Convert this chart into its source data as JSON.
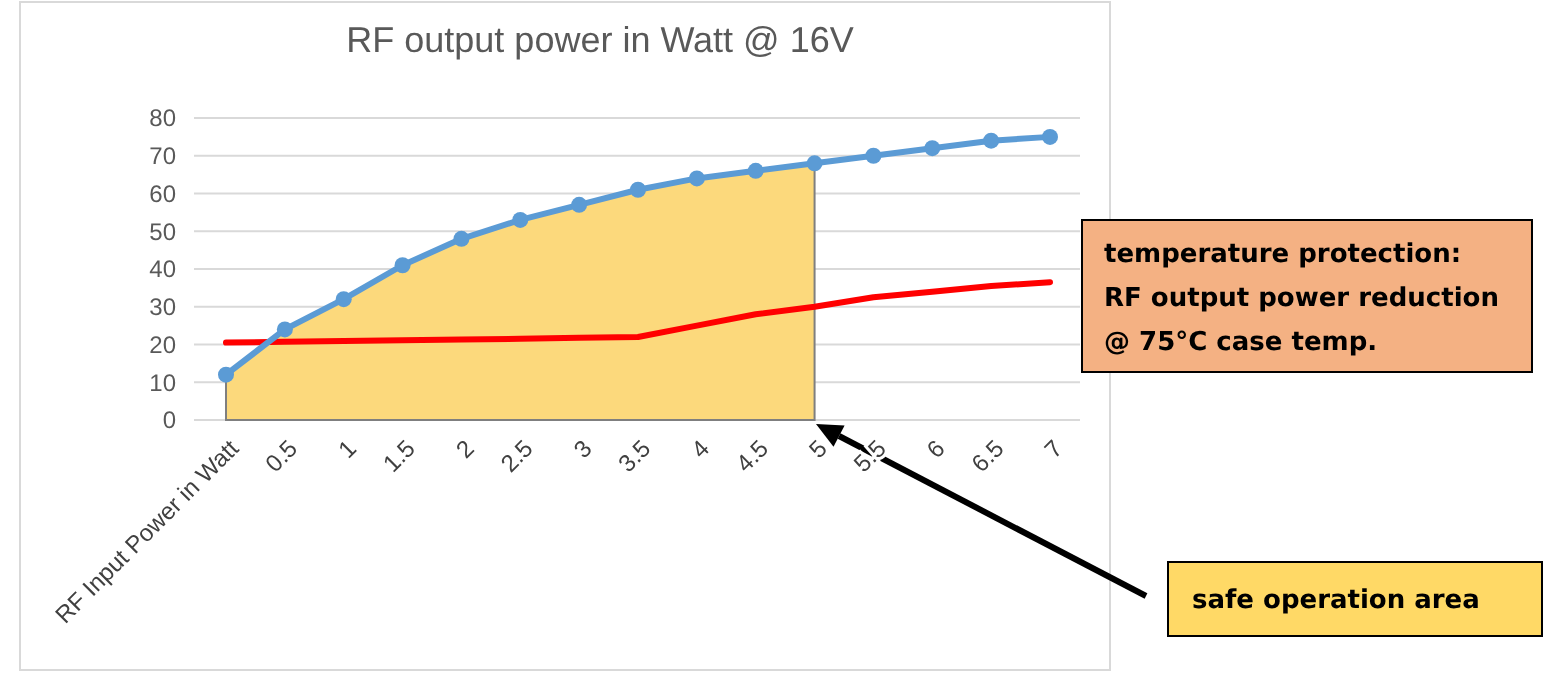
{
  "chart_data": {
    "type": "line",
    "title": "RF output power in Watt @ 16V",
    "categories": [
      "RF Input Power in Watt",
      "0.5",
      "1",
      "1.5",
      "2",
      "2.5",
      "3",
      "3.5",
      "4",
      "4.5",
      "5",
      "5.5",
      "6",
      "6.5",
      "7"
    ],
    "series": [
      {
        "type": "area",
        "color": "#fcd97c",
        "values": [
          12,
          24,
          32,
          41,
          48,
          53,
          57,
          61,
          64,
          66,
          68,
          null,
          null,
          null,
          null
        ]
      },
      {
        "color": "#ff0000",
        "marker": "none",
        "values": [
          20.5,
          20.7,
          20.9,
          21.1,
          21.3,
          21.5,
          21.8,
          22,
          25,
          28,
          30,
          32.5,
          34,
          35.5,
          36.5
        ]
      },
      {
        "color": "#5b9bd5",
        "marker": "circle",
        "values": [
          12,
          24,
          32,
          41,
          48,
          53,
          57,
          61,
          64,
          66,
          68,
          70,
          72,
          74,
          75
        ]
      }
    ],
    "ylim": [
      0,
      80
    ],
    "yticks": [
      0,
      10,
      20,
      30,
      40,
      50,
      60,
      70,
      80
    ],
    "grid": "y",
    "annotations": [
      "temperature protection:\nRF output power reduction\n@ 75°C case temp.",
      "safe operation area"
    ]
  }
}
